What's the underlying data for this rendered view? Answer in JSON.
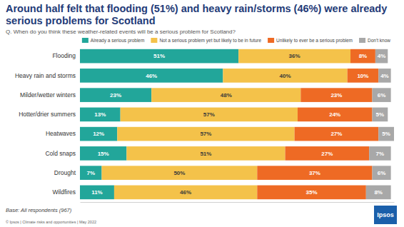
{
  "chart_data": {
    "type": "bar",
    "orientation": "horizontal",
    "stacked": true,
    "title": "Around half felt that flooding (51%) and heavy rain/storms (46%) were already serious problems for Scotland",
    "subtitle": "Q. When do you think these weather-related events will be a serious problem for Scotland?",
    "categories": [
      "Flooding",
      "Heavy rain and storms",
      "Milder/wetter winters",
      "Hotter/drier summers",
      "Heatwaves",
      "Cold snaps",
      "Drought",
      "Wildfires"
    ],
    "series": [
      {
        "name": "Already a serious problem",
        "color": "#22a69a",
        "values": [
          51,
          46,
          23,
          13,
          12,
          15,
          7,
          11
        ],
        "value_labels": [
          "51%",
          "46%",
          "23%",
          "13%",
          "12%",
          "15%",
          "7%",
          "11%"
        ]
      },
      {
        "name": "Not a serious problem yet but likely to be in future",
        "color": "#f4c24a",
        "values": [
          36,
          40,
          48,
          57,
          57,
          51,
          50,
          46
        ],
        "value_labels": [
          "36%",
          "40%",
          "48%",
          "57%",
          "57%",
          "51%",
          "50%",
          "46%"
        ]
      },
      {
        "name": "Unlikely to ever be a serious problem",
        "color": "#ee6a24",
        "values": [
          8,
          10,
          23,
          24,
          27,
          27,
          37,
          35
        ],
        "value_labels": [
          "8%",
          "10%",
          "23%",
          "24%",
          "27%",
          "27%",
          "37%",
          "35%"
        ]
      },
      {
        "name": "Don't know",
        "color": "#a8a8a8",
        "values": [
          4,
          4,
          6,
          5,
          5,
          7,
          6,
          8
        ],
        "value_labels": [
          "4%",
          "4%",
          "6%",
          "5%",
          "5%",
          "7%",
          "6%",
          "8%"
        ]
      }
    ],
    "xlim": [
      0,
      101
    ],
    "xticks": [],
    "tick_labels": "y",
    "data_labels": true,
    "legend": "top",
    "grid": false,
    "annotations": [
      "Base: All respondents (967)",
      "© Ipsos | Climate risks and opportunities | May 2022",
      "Ipsos"
    ]
  }
}
